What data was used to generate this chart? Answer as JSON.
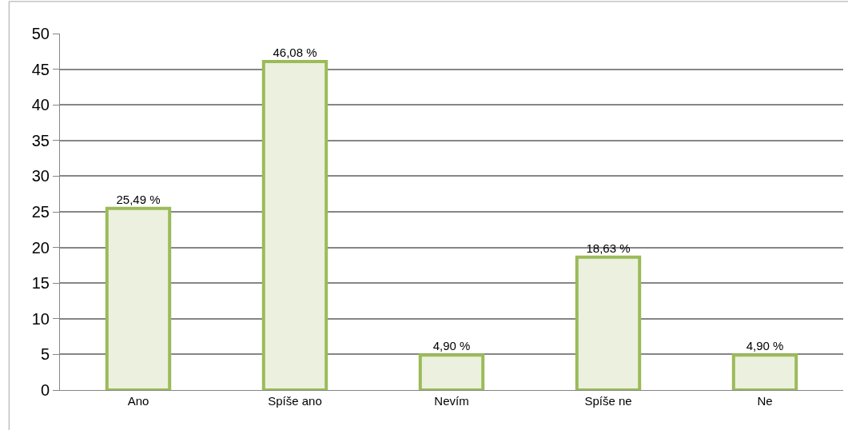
{
  "chart_data": {
    "type": "bar",
    "categories": [
      "Ano",
      "Spíše ano",
      "Nevím",
      "Spíše ne",
      "Ne"
    ],
    "values": [
      25.49,
      46.08,
      4.9,
      18.63,
      4.9
    ],
    "value_labels": [
      "25,49 %",
      "46,08 %",
      "4,90 %",
      "18,63 %",
      "4,90 %"
    ],
    "color": "#ebf1de",
    "ylim": [
      0,
      50
    ],
    "yticks": [
      0,
      5,
      10,
      15,
      20,
      25,
      30,
      35,
      40,
      45,
      50
    ],
    "grid": "y",
    "legend": false
  }
}
